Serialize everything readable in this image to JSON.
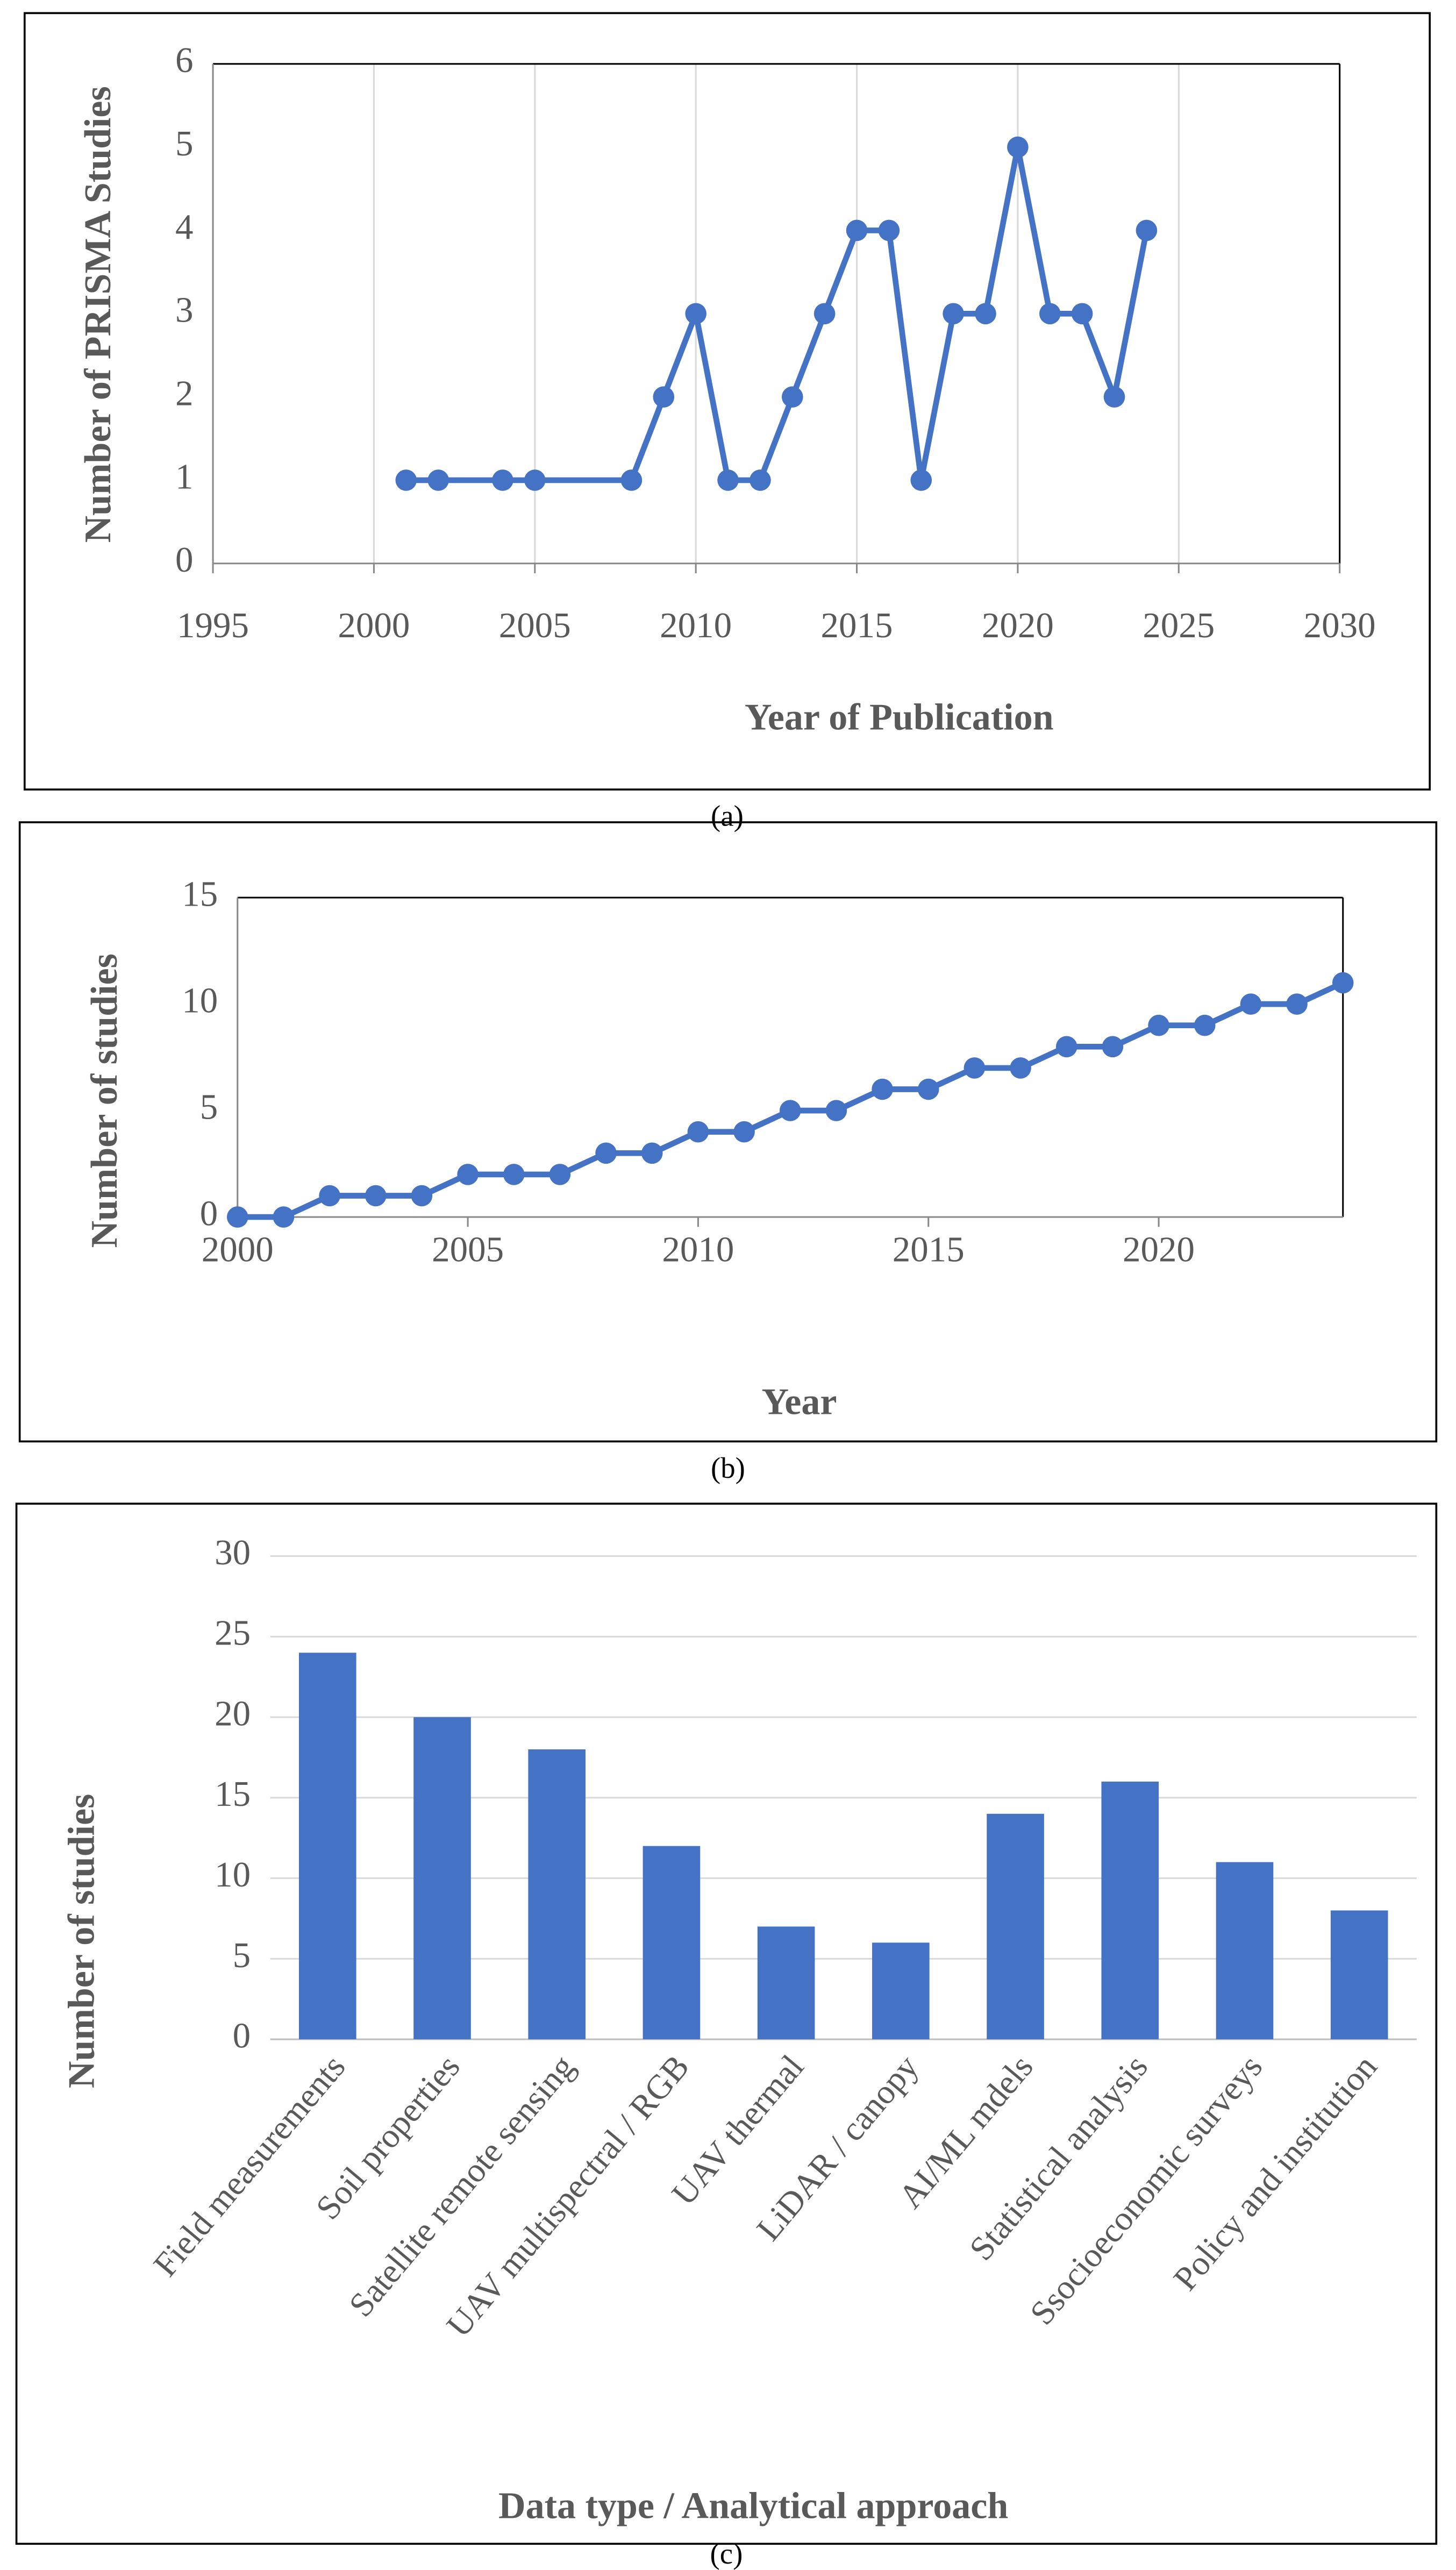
{
  "chart_data": [
    {
      "type": "line",
      "caption": "(a)",
      "x_label": "Year of Publication",
      "y_label": "Number of PRISMA Studies",
      "color": "#4472c4",
      "grid": "x",
      "x": [
        2001,
        2002,
        2004,
        2005,
        2008,
        2009,
        2010,
        2011,
        2012,
        2013,
        2014,
        2015,
        2016,
        2017,
        2018,
        2019,
        2020,
        2021,
        2022,
        2023,
        2024
      ],
      "values": [
        1,
        1,
        1,
        1,
        1,
        2,
        3,
        1,
        1,
        2,
        3,
        4,
        4,
        1,
        3,
        3,
        5,
        3,
        3,
        2,
        4
      ],
      "xlim": [
        1995,
        2030
      ],
      "xticks": [
        1995,
        2000,
        2005,
        2010,
        2015,
        2020,
        2025,
        2030
      ],
      "ylim": [
        0,
        6
      ],
      "yticks": [
        0,
        1,
        2,
        3,
        4,
        5,
        6
      ]
    },
    {
      "type": "line",
      "caption": "(b)",
      "x_label": "Year",
      "y_label": "Number of studies",
      "color": "#4472c4",
      "grid": false,
      "x": [
        2000,
        2001,
        2002,
        2003,
        2004,
        2005,
        2006,
        2007,
        2008,
        2009,
        2010,
        2011,
        2012,
        2013,
        2014,
        2015,
        2016,
        2017,
        2018,
        2019,
        2020,
        2021,
        2022,
        2023,
        2024
      ],
      "values": [
        0,
        0,
        1,
        1,
        1,
        2,
        2,
        2,
        3,
        3,
        4,
        4,
        5,
        5,
        6,
        6,
        7,
        7,
        8,
        8,
        9,
        9,
        10,
        10,
        11
      ],
      "xlim": [
        2000,
        2024
      ],
      "xticks": [
        2000,
        2005,
        2010,
        2015,
        2020
      ],
      "ylim": [
        0,
        15
      ],
      "yticks": [
        0,
        5,
        10,
        15
      ]
    },
    {
      "type": "bar",
      "caption": "(c)",
      "x_label": "Data type / Analytical approach",
      "y_label": "Number of studies",
      "color": "#4472c4",
      "grid": "y",
      "categories": [
        "Field measurements",
        "Soil properties",
        "Satellite remote sensing",
        "UAV multispectral / RGB",
        "UAV thermal",
        "LiDAR / canopy",
        "AI/ML mdels",
        "Statistical analysis",
        "Ssocioeconomic surveys",
        "Policy and institution"
      ],
      "values": [
        24,
        20,
        18,
        12,
        7,
        6,
        14,
        16,
        11,
        8
      ],
      "ylim": [
        0,
        30
      ],
      "yticks": [
        0,
        5,
        10,
        15,
        20,
        25,
        30
      ]
    }
  ]
}
